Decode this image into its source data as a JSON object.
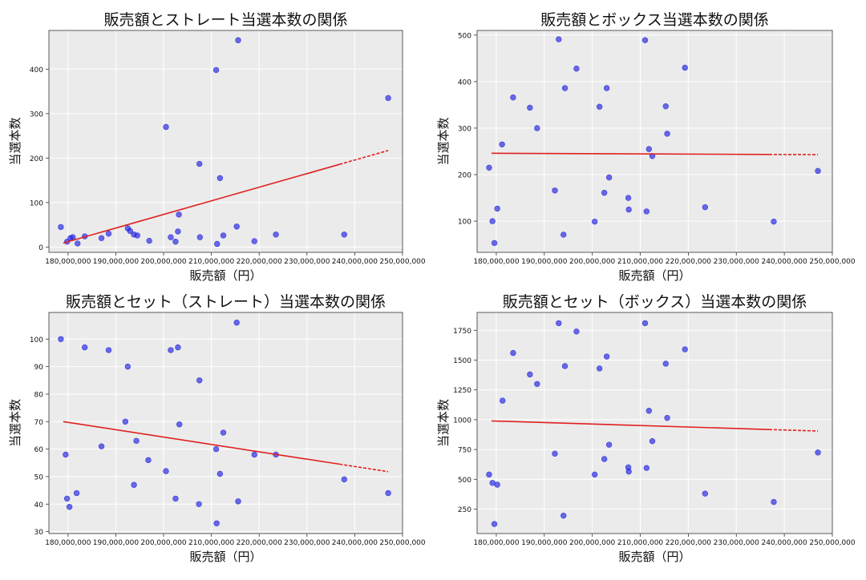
{
  "chart_data": [
    {
      "type": "scatter",
      "title": "販売額とストレート当選本数の関係",
      "xlabel": "販売額（円）",
      "ylabel": "当選本数",
      "xlim": [
        176000000,
        250000000
      ],
      "ylim": [
        -12,
        487
      ],
      "x_ticks": [
        180000000,
        190000000,
        200000000,
        210000000,
        220000000,
        230000000,
        240000000,
        250000000
      ],
      "x_tick_labels": [
        "180,000,000",
        "190,000,000",
        "200,000,000",
        "210,000,000",
        "220,000,000",
        "230,000,000",
        "240,000,000",
        "250,000,000"
      ],
      "y_ticks": [
        0,
        100,
        200,
        300,
        400
      ],
      "y_tick_labels": [
        "0",
        "100",
        "200",
        "300",
        "400"
      ],
      "grid": true,
      "point_color": "#2020e0",
      "trend_color": "#e02020",
      "trend_line": {
        "x": [
          179000000,
          247000000
        ],
        "y": [
          9,
          217
        ]
      },
      "points": [
        {
          "x": 178500000,
          "y": 45
        },
        {
          "x": 179800000,
          "y": 12
        },
        {
          "x": 180500000,
          "y": 20
        },
        {
          "x": 181000000,
          "y": 22
        },
        {
          "x": 182000000,
          "y": 8
        },
        {
          "x": 183500000,
          "y": 24
        },
        {
          "x": 187000000,
          "y": 20
        },
        {
          "x": 188500000,
          "y": 30
        },
        {
          "x": 192500000,
          "y": 42
        },
        {
          "x": 193000000,
          "y": 36
        },
        {
          "x": 193800000,
          "y": 28
        },
        {
          "x": 194500000,
          "y": 26
        },
        {
          "x": 197000000,
          "y": 14
        },
        {
          "x": 200500000,
          "y": 270
        },
        {
          "x": 201500000,
          "y": 22
        },
        {
          "x": 202500000,
          "y": 12
        },
        {
          "x": 203000000,
          "y": 35
        },
        {
          "x": 203200000,
          "y": 73
        },
        {
          "x": 207500000,
          "y": 187
        },
        {
          "x": 207600000,
          "y": 22
        },
        {
          "x": 211000000,
          "y": 398
        },
        {
          "x": 211200000,
          "y": 7
        },
        {
          "x": 211800000,
          "y": 155
        },
        {
          "x": 212500000,
          "y": 26
        },
        {
          "x": 215300000,
          "y": 46
        },
        {
          "x": 215600000,
          "y": 465
        },
        {
          "x": 219000000,
          "y": 13
        },
        {
          "x": 223500000,
          "y": 28
        },
        {
          "x": 237800000,
          "y": 28
        },
        {
          "x": 247000000,
          "y": 335
        }
      ]
    },
    {
      "type": "scatter",
      "title": "販売額とボックス当選本数の関係",
      "xlabel": "販売額（円）",
      "ylabel": "当選本数",
      "xlim": [
        176000000,
        250000000
      ],
      "ylim": [
        33,
        510
      ],
      "x_ticks": [
        180000000,
        190000000,
        200000000,
        210000000,
        220000000,
        230000000,
        240000000,
        250000000
      ],
      "x_tick_labels": [
        "180,000,000",
        "190,000,000",
        "200,000,000",
        "210,000,000",
        "220,000,000",
        "230,000,000",
        "240,000,000",
        "250,000,000"
      ],
      "y_ticks": [
        100,
        200,
        300,
        400,
        500
      ],
      "y_tick_labels": [
        "100",
        "200",
        "300",
        "400",
        "500"
      ],
      "grid": true,
      "point_color": "#2020e0",
      "trend_color": "#e02020",
      "trend_line": {
        "x": [
          179000000,
          247000000
        ],
        "y": [
          246,
          243
        ]
      },
      "points": [
        {
          "x": 178500000,
          "y": 215
        },
        {
          "x": 179200000,
          "y": 100
        },
        {
          "x": 179600000,
          "y": 53
        },
        {
          "x": 180200000,
          "y": 127
        },
        {
          "x": 181200000,
          "y": 265
        },
        {
          "x": 183500000,
          "y": 366
        },
        {
          "x": 187000000,
          "y": 344
        },
        {
          "x": 188500000,
          "y": 300
        },
        {
          "x": 192200000,
          "y": 166
        },
        {
          "x": 193000000,
          "y": 491
        },
        {
          "x": 194000000,
          "y": 71
        },
        {
          "x": 194300000,
          "y": 386
        },
        {
          "x": 196700000,
          "y": 428
        },
        {
          "x": 200500000,
          "y": 99
        },
        {
          "x": 201500000,
          "y": 346
        },
        {
          "x": 202500000,
          "y": 161
        },
        {
          "x": 203000000,
          "y": 386
        },
        {
          "x": 203500000,
          "y": 194
        },
        {
          "x": 207500000,
          "y": 150
        },
        {
          "x": 207600000,
          "y": 125
        },
        {
          "x": 211000000,
          "y": 489
        },
        {
          "x": 211300000,
          "y": 121
        },
        {
          "x": 211800000,
          "y": 255
        },
        {
          "x": 212500000,
          "y": 240
        },
        {
          "x": 215300000,
          "y": 347
        },
        {
          "x": 215600000,
          "y": 288
        },
        {
          "x": 219300000,
          "y": 430
        },
        {
          "x": 223500000,
          "y": 130
        },
        {
          "x": 237800000,
          "y": 99
        },
        {
          "x": 247000000,
          "y": 208
        }
      ]
    },
    {
      "type": "scatter",
      "title": "販売額とセット（ストレート）当選本数の関係",
      "xlabel": "販売額（円）",
      "ylabel": "当選本数",
      "xlim": [
        176000000,
        250000000
      ],
      "ylim": [
        29.3,
        109.7
      ],
      "x_ticks": [
        180000000,
        190000000,
        200000000,
        210000000,
        220000000,
        230000000,
        240000000,
        250000000
      ],
      "x_tick_labels": [
        "180,000,000",
        "190,000,000",
        "200,000,000",
        "210,000,000",
        "220,000,000",
        "230,000,000",
        "240,000,000",
        "250,000,000"
      ],
      "y_ticks": [
        30,
        40,
        50,
        60,
        70,
        80,
        90,
        100
      ],
      "y_tick_labels": [
        "30",
        "40",
        "50",
        "60",
        "70",
        "80",
        "90",
        "100"
      ],
      "grid": true,
      "point_color": "#2020e0",
      "trend_color": "#e02020",
      "trend_line": {
        "x": [
          179000000,
          247000000
        ],
        "y": [
          70,
          51.8
        ]
      },
      "points": [
        {
          "x": 178500000,
          "y": 100
        },
        {
          "x": 179500000,
          "y": 58
        },
        {
          "x": 179800000,
          "y": 42
        },
        {
          "x": 180300000,
          "y": 39
        },
        {
          "x": 181800000,
          "y": 44
        },
        {
          "x": 183500000,
          "y": 97
        },
        {
          "x": 187000000,
          "y": 61
        },
        {
          "x": 188500000,
          "y": 96
        },
        {
          "x": 192000000,
          "y": 70
        },
        {
          "x": 192500000,
          "y": 90
        },
        {
          "x": 193800000,
          "y": 47
        },
        {
          "x": 194300000,
          "y": 63
        },
        {
          "x": 196800000,
          "y": 56
        },
        {
          "x": 200500000,
          "y": 52
        },
        {
          "x": 201500000,
          "y": 96
        },
        {
          "x": 202500000,
          "y": 42
        },
        {
          "x": 203000000,
          "y": 97
        },
        {
          "x": 203300000,
          "y": 69
        },
        {
          "x": 207500000,
          "y": 85
        },
        {
          "x": 207400000,
          "y": 40
        },
        {
          "x": 211000000,
          "y": 60
        },
        {
          "x": 211100000,
          "y": 33
        },
        {
          "x": 211800000,
          "y": 51
        },
        {
          "x": 212500000,
          "y": 66
        },
        {
          "x": 215300000,
          "y": 106
        },
        {
          "x": 215600000,
          "y": 41
        },
        {
          "x": 219000000,
          "y": 58
        },
        {
          "x": 223500000,
          "y": 58
        },
        {
          "x": 237800000,
          "y": 49
        },
        {
          "x": 247000000,
          "y": 44
        }
      ]
    },
    {
      "type": "scatter",
      "title": "販売額とセット（ボックス）当選本数の関係",
      "xlabel": "販売額（円）",
      "ylabel": "当選本数",
      "xlim": [
        176000000,
        250000000
      ],
      "ylim": [
        45,
        1900
      ],
      "x_ticks": [
        180000000,
        190000000,
        200000000,
        210000000,
        220000000,
        230000000,
        240000000,
        250000000
      ],
      "x_tick_labels": [
        "180,000,000",
        "190,000,000",
        "200,000,000",
        "210,000,000",
        "220,000,000",
        "230,000,000",
        "240,000,000",
        "250,000,000"
      ],
      "y_ticks": [
        250,
        500,
        750,
        1000,
        1250,
        1500,
        1750
      ],
      "y_tick_labels": [
        "250",
        "500",
        "750",
        "1000",
        "1250",
        "1500",
        "1750"
      ],
      "grid": true,
      "point_color": "#2020e0",
      "trend_color": "#e02020",
      "trend_line": {
        "x": [
          179000000,
          247000000
        ],
        "y": [
          990,
          905
        ]
      },
      "points": [
        {
          "x": 178500000,
          "y": 540
        },
        {
          "x": 179200000,
          "y": 470
        },
        {
          "x": 179600000,
          "y": 125
        },
        {
          "x": 180200000,
          "y": 455
        },
        {
          "x": 181300000,
          "y": 1160
        },
        {
          "x": 183500000,
          "y": 1560
        },
        {
          "x": 187000000,
          "y": 1380
        },
        {
          "x": 188500000,
          "y": 1300
        },
        {
          "x": 192200000,
          "y": 715
        },
        {
          "x": 193000000,
          "y": 1810
        },
        {
          "x": 194000000,
          "y": 195
        },
        {
          "x": 194300000,
          "y": 1450
        },
        {
          "x": 196700000,
          "y": 1740
        },
        {
          "x": 200500000,
          "y": 540
        },
        {
          "x": 201500000,
          "y": 1430
        },
        {
          "x": 202500000,
          "y": 670
        },
        {
          "x": 203000000,
          "y": 1530
        },
        {
          "x": 203500000,
          "y": 790
        },
        {
          "x": 207500000,
          "y": 600
        },
        {
          "x": 207600000,
          "y": 565
        },
        {
          "x": 211000000,
          "y": 1810
        },
        {
          "x": 211300000,
          "y": 595
        },
        {
          "x": 211800000,
          "y": 1075
        },
        {
          "x": 212500000,
          "y": 820
        },
        {
          "x": 215300000,
          "y": 1470
        },
        {
          "x": 215600000,
          "y": 1015
        },
        {
          "x": 219300000,
          "y": 1590
        },
        {
          "x": 223500000,
          "y": 380
        },
        {
          "x": 237800000,
          "y": 310
        },
        {
          "x": 247000000,
          "y": 725
        }
      ]
    }
  ]
}
